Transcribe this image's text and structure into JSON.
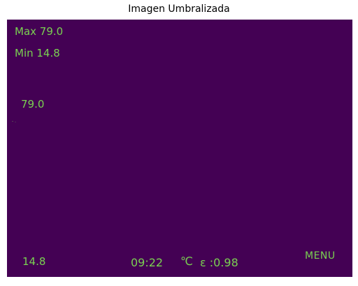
{
  "title": "Imagen Umbralizada",
  "colors": {
    "background": "#440154",
    "overlay_text": "#7ad151"
  },
  "overlay": {
    "max_label": "Max 79.0",
    "min_label": "Min 14.8",
    "scale_top": "79.0",
    "scale_bottom": "14.8",
    "time": "09:22",
    "unit": "℃",
    "emissivity": "ε :0.98",
    "menu": "MENU"
  }
}
